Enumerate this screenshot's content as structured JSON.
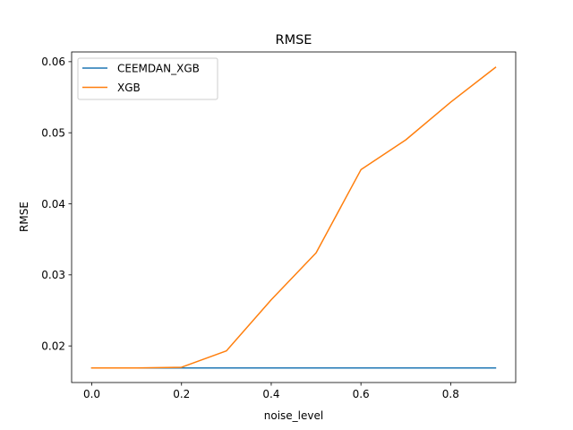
{
  "chart_data": {
    "type": "line",
    "title": "RMSE",
    "xlabel": "noise_level",
    "ylabel": "RMSE",
    "x": [
      0.0,
      0.1,
      0.2,
      0.3,
      0.4,
      0.5,
      0.6,
      0.7,
      0.8,
      0.9
    ],
    "xlim": [
      -0.045,
      0.945
    ],
    "ylim": [
      0.01485,
      0.06137
    ],
    "xticks": [
      0.0,
      0.2,
      0.4,
      0.6,
      0.8
    ],
    "xtick_labels": [
      "0.0",
      "0.2",
      "0.4",
      "0.6",
      "0.8"
    ],
    "yticks": [
      0.02,
      0.03,
      0.04,
      0.05,
      0.06
    ],
    "ytick_labels": [
      "0.02",
      "0.03",
      "0.04",
      "0.05",
      "0.06"
    ],
    "grid": false,
    "legend_position": "top-left",
    "series": [
      {
        "name": "CEEMDAN_XGB",
        "color": "#1f77b4",
        "values": [
          0.0169,
          0.0169,
          0.0169,
          0.0169,
          0.0169,
          0.0169,
          0.0169,
          0.0169,
          0.0169,
          0.0169
        ]
      },
      {
        "name": "XGB",
        "color": "#ff7f0e",
        "values": [
          0.0169,
          0.0169,
          0.017,
          0.0193,
          0.0265,
          0.0331,
          0.0448,
          0.049,
          0.0543,
          0.0592
        ]
      }
    ]
  }
}
